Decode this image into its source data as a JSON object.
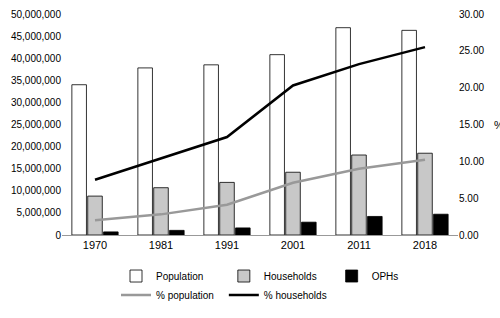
{
  "chart_data": {
    "type": "bar",
    "categories": [
      "1970",
      "1981",
      "1991",
      "2001",
      "2011",
      "2018"
    ],
    "series": [
      {
        "name": "Population",
        "type": "bar",
        "color": "#ffffff",
        "values": [
          34000000,
          37800000,
          38500000,
          40800000,
          46900000,
          46300000
        ]
      },
      {
        "name": "Households",
        "type": "bar",
        "color": "#c8c8c8",
        "values": [
          8800000,
          10700000,
          11900000,
          14200000,
          18100000,
          18500000
        ]
      },
      {
        "name": "OPHs",
        "type": "bar",
        "color": "#000000",
        "values": [
          700000,
          1050000,
          1600000,
          2900000,
          4200000,
          4700000
        ]
      },
      {
        "name": "% population",
        "type": "line",
        "axis": "y2",
        "color": "#999999",
        "values": [
          2.0,
          2.8,
          4.1,
          7.1,
          9.0,
          10.2
        ]
      },
      {
        "name": "% households",
        "type": "line",
        "axis": "y2",
        "color": "#000000",
        "values": [
          7.5,
          10.4,
          13.3,
          20.3,
          23.2,
          25.5
        ]
      }
    ],
    "ylim": [
      0,
      50000000
    ],
    "yticks": [
      0,
      {
        "value": 5000000,
        "label": "5,000,000"
      },
      {
        "value": 10000000,
        "label": "10,000,000"
      },
      {
        "value": 15000000,
        "label": "15,000,000"
      },
      {
        "value": 20000000,
        "label": "20,000,000"
      },
      {
        "value": 25000000,
        "label": "25,000,000"
      },
      {
        "value": 30000000,
        "label": "30,000,000"
      },
      {
        "value": 35000000,
        "label": "35,000,000"
      },
      {
        "value": 40000000,
        "label": "40,000,000"
      },
      {
        "value": 45000000,
        "label": "45,000,000"
      },
      {
        "value": 50000000,
        "label": "50,000,000"
      }
    ],
    "y2lim": [
      0,
      30
    ],
    "y2ticks": [
      {
        "value": 0,
        "label": "0.00"
      },
      {
        "value": 5,
        "label": "5.00"
      },
      {
        "value": 10,
        "label": "10.00"
      },
      {
        "value": 15,
        "label": "15.00"
      },
      {
        "value": 20,
        "label": "20.00"
      },
      {
        "value": 25,
        "label": "25.00"
      },
      {
        "value": 30,
        "label": "30.00"
      }
    ],
    "y2label": "%",
    "grid": false,
    "legend": "bottom"
  }
}
